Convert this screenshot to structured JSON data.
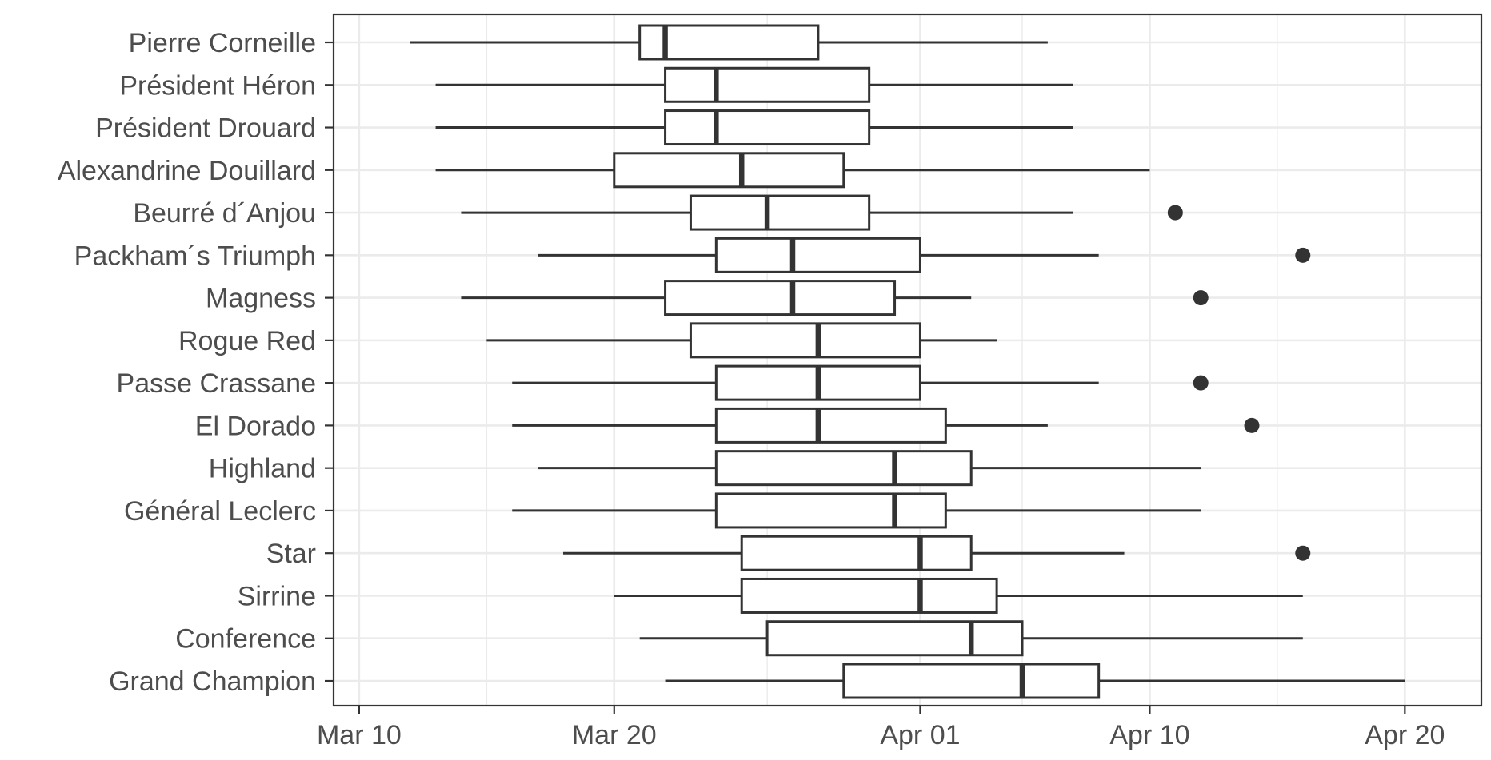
{
  "chart_data": {
    "type": "boxplot",
    "orientation": "horizontal",
    "x_axis": {
      "type": "date",
      "ticks": [
        {
          "value": "2023-03-10",
          "label": "Mar 10"
        },
        {
          "value": "2023-03-20",
          "label": "Mar 20"
        },
        {
          "value": "2023-04-01",
          "label": "Apr 01"
        },
        {
          "value": "2023-04-10",
          "label": "Apr 10"
        },
        {
          "value": "2023-04-20",
          "label": "Apr 20"
        }
      ],
      "range": [
        "2023-03-09",
        "2023-04-23"
      ]
    },
    "grid": true,
    "theme": "bw",
    "colors": {
      "box_line": "#333333",
      "point": "#333333",
      "grid": "#ebebeb",
      "panel_border": "#333333"
    },
    "series": [
      {
        "category": "Pierre Corneille",
        "whisker_low": "2023-03-12",
        "q1": "2023-03-21",
        "median": "2023-03-22",
        "q3": "2023-03-28",
        "whisker_high": "2023-04-06",
        "outliers": []
      },
      {
        "category": "Président Héron",
        "whisker_low": "2023-03-13",
        "q1": "2023-03-22",
        "median": "2023-03-24",
        "q3": "2023-03-30",
        "whisker_high": "2023-04-07",
        "outliers": []
      },
      {
        "category": "Président Drouard",
        "whisker_low": "2023-03-13",
        "q1": "2023-03-22",
        "median": "2023-03-24",
        "q3": "2023-03-30",
        "whisker_high": "2023-04-07",
        "outliers": []
      },
      {
        "category": "Alexandrine Douillard",
        "whisker_low": "2023-03-13",
        "q1": "2023-03-20",
        "median": "2023-03-25",
        "q3": "2023-03-29",
        "whisker_high": "2023-04-10",
        "outliers": []
      },
      {
        "category": "Beurré d´Anjou",
        "whisker_low": "2023-03-14",
        "q1": "2023-03-23",
        "median": "2023-03-26",
        "q3": "2023-03-30",
        "whisker_high": "2023-04-07",
        "outliers": [
          "2023-04-11"
        ]
      },
      {
        "category": "Packham´s Triumph",
        "whisker_low": "2023-03-17",
        "q1": "2023-03-24",
        "median": "2023-03-27",
        "q3": "2023-04-01",
        "whisker_high": "2023-04-08",
        "outliers": [
          "2023-04-16"
        ]
      },
      {
        "category": "Magness",
        "whisker_low": "2023-03-14",
        "q1": "2023-03-22",
        "median": "2023-03-27",
        "q3": "2023-03-31",
        "whisker_high": "2023-04-03",
        "outliers": [
          "2023-04-12"
        ]
      },
      {
        "category": "Rogue Red",
        "whisker_low": "2023-03-15",
        "q1": "2023-03-23",
        "median": "2023-03-28",
        "q3": "2023-04-01",
        "whisker_high": "2023-04-04",
        "outliers": []
      },
      {
        "category": "Passe Crassane",
        "whisker_low": "2023-03-16",
        "q1": "2023-03-24",
        "median": "2023-03-28",
        "q3": "2023-04-01",
        "whisker_high": "2023-04-08",
        "outliers": [
          "2023-04-12"
        ]
      },
      {
        "category": "El Dorado",
        "whisker_low": "2023-03-16",
        "q1": "2023-03-24",
        "median": "2023-03-28",
        "q3": "2023-04-02",
        "whisker_high": "2023-04-06",
        "outliers": [
          "2023-04-14"
        ]
      },
      {
        "category": "Highland",
        "whisker_low": "2023-03-17",
        "q1": "2023-03-24",
        "median": "2023-03-31",
        "q3": "2023-04-03",
        "whisker_high": "2023-04-12",
        "outliers": []
      },
      {
        "category": "Général Leclerc",
        "whisker_low": "2023-03-16",
        "q1": "2023-03-24",
        "median": "2023-03-31",
        "q3": "2023-04-02",
        "whisker_high": "2023-04-12",
        "outliers": []
      },
      {
        "category": "Star",
        "whisker_low": "2023-03-18",
        "q1": "2023-03-25",
        "median": "2023-04-01",
        "q3": "2023-04-03",
        "whisker_high": "2023-04-09",
        "outliers": [
          "2023-04-16"
        ]
      },
      {
        "category": "Sirrine",
        "whisker_low": "2023-03-20",
        "q1": "2023-03-25",
        "median": "2023-04-01",
        "q3": "2023-04-04",
        "whisker_high": "2023-04-16",
        "outliers": []
      },
      {
        "category": "Conference",
        "whisker_low": "2023-03-21",
        "q1": "2023-03-26",
        "median": "2023-04-03",
        "q3": "2023-04-05",
        "whisker_high": "2023-04-16",
        "outliers": []
      },
      {
        "category": "Grand Champion",
        "whisker_low": "2023-03-22",
        "q1": "2023-03-29",
        "median": "2023-04-05",
        "q3": "2023-04-08",
        "whisker_high": "2023-04-20",
        "outliers": []
      }
    ]
  }
}
